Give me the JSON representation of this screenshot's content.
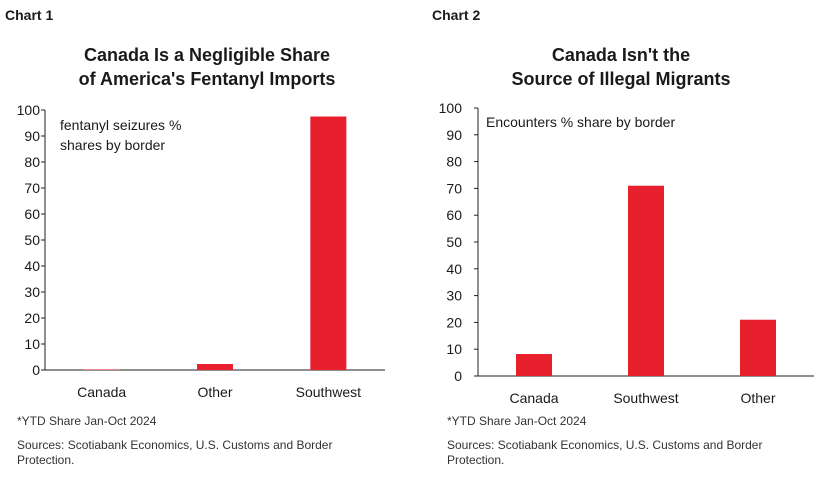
{
  "chart_data": [
    {
      "type": "bar",
      "label": "Chart 1",
      "title_lines": [
        "Canada Is a Negligible Share",
        "of America's Fentanyl Imports"
      ],
      "annotation_lines": [
        "fentanyl seizures %",
        "shares by border"
      ],
      "categories": [
        "Canada",
        "Other",
        "Southwest"
      ],
      "values": [
        0.2,
        2.3,
        97.5
      ],
      "ylim": [
        0,
        100
      ],
      "yticks": [
        "0",
        "10",
        "20",
        "30",
        "40",
        "50",
        "60",
        "70",
        "80",
        "90",
        "100"
      ],
      "bar_color": "#e8202e",
      "footnote": "*YTD Share Jan-Oct 2024",
      "sources_lines": [
        "Sources: Scotiabank Economics, U.S. Customs and Border",
        "Protection."
      ]
    },
    {
      "type": "bar",
      "label": "Chart 2",
      "title_lines": [
        "Canada Isn't the",
        "Source of Illegal Migrants"
      ],
      "annotation_lines": [
        "Encounters % share by border"
      ],
      "categories": [
        "Canada",
        "Southwest",
        "Other"
      ],
      "values": [
        8.2,
        71,
        21
      ],
      "ylim": [
        0,
        100
      ],
      "yticks": [
        "0",
        "10",
        "20",
        "30",
        "40",
        "50",
        "60",
        "70",
        "80",
        "90",
        "100"
      ],
      "bar_color": "#e8202e",
      "footnote": "*YTD Share Jan-Oct 2024",
      "sources_lines": [
        "Sources: Scotiabank Economics, U.S. Customs and Border",
        "Protection."
      ]
    }
  ]
}
